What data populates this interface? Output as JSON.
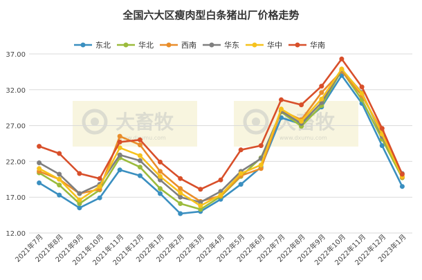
{
  "chart_data": {
    "type": "line",
    "title": "全国六大区瘦肉型白条猪出厂价格走势",
    "xlabel": "",
    "ylabel": "",
    "ylim": [
      12,
      37
    ],
    "yticks": [
      "12.00",
      "17.00",
      "22.00",
      "27.00",
      "32.00",
      "37.00"
    ],
    "grid": "horizontal",
    "legend_position": "top",
    "categories": [
      "2021年7月",
      "2021年8月",
      "2021年9月",
      "2021年10月",
      "2021年11月",
      "2021年12月",
      "2022年1月",
      "2022年2月",
      "2022年3月",
      "2022年4月",
      "2022年5月",
      "2022年6月",
      "2022年7月",
      "2022年8月",
      "2022年9月",
      "2022年10月",
      "2022年11月",
      "2022年12月",
      "2023年1月"
    ],
    "series": [
      {
        "name": "东北",
        "color": "#3a8fc0",
        "values": [
          19.0,
          17.3,
          15.5,
          16.9,
          20.8,
          20.0,
          17.5,
          14.7,
          15.0,
          16.7,
          18.8,
          21.2,
          28.1,
          27.2,
          29.6,
          34.0,
          30.1,
          24.2,
          18.5
        ]
      },
      {
        "name": "华北",
        "color": "#9bbb3c",
        "values": [
          20.4,
          18.7,
          16.1,
          18.0,
          22.5,
          21.2,
          18.2,
          16.1,
          15.3,
          17.1,
          19.9,
          22.5,
          28.9,
          26.9,
          29.8,
          34.7,
          30.6,
          25.1,
          19.7
        ]
      },
      {
        "name": "西南",
        "color": "#e98d2a",
        "values": [
          20.6,
          19.5,
          17.5,
          18.1,
          25.5,
          24.3,
          20.6,
          18.2,
          16.4,
          17.2,
          20.0,
          21.0,
          29.1,
          27.8,
          31.6,
          34.6,
          31.2,
          26.2,
          19.8
        ]
      },
      {
        "name": "华东",
        "color": "#7f7f7f",
        "values": [
          21.8,
          20.2,
          17.5,
          18.8,
          22.9,
          22.1,
          19.4,
          17.0,
          16.3,
          17.8,
          20.6,
          22.4,
          29.0,
          27.3,
          30.2,
          34.8,
          31.6,
          25.5,
          20.3
        ]
      },
      {
        "name": "华中",
        "color": "#f6c21c",
        "values": [
          21.0,
          19.5,
          16.6,
          18.5,
          23.9,
          22.8,
          19.9,
          17.6,
          15.8,
          17.3,
          20.3,
          21.5,
          29.3,
          27.6,
          30.7,
          34.9,
          31.5,
          25.8,
          19.9
        ]
      },
      {
        "name": "华南",
        "color": "#d84f2a",
        "values": [
          24.1,
          23.1,
          20.3,
          19.6,
          24.7,
          25.0,
          21.9,
          19.6,
          18.1,
          19.4,
          23.6,
          24.2,
          30.6,
          29.9,
          32.5,
          36.3,
          32.4,
          26.6,
          20.2
        ]
      }
    ]
  },
  "watermark": {
    "brand_cn": "大畜牧",
    "site": "www.dxumu.com"
  }
}
